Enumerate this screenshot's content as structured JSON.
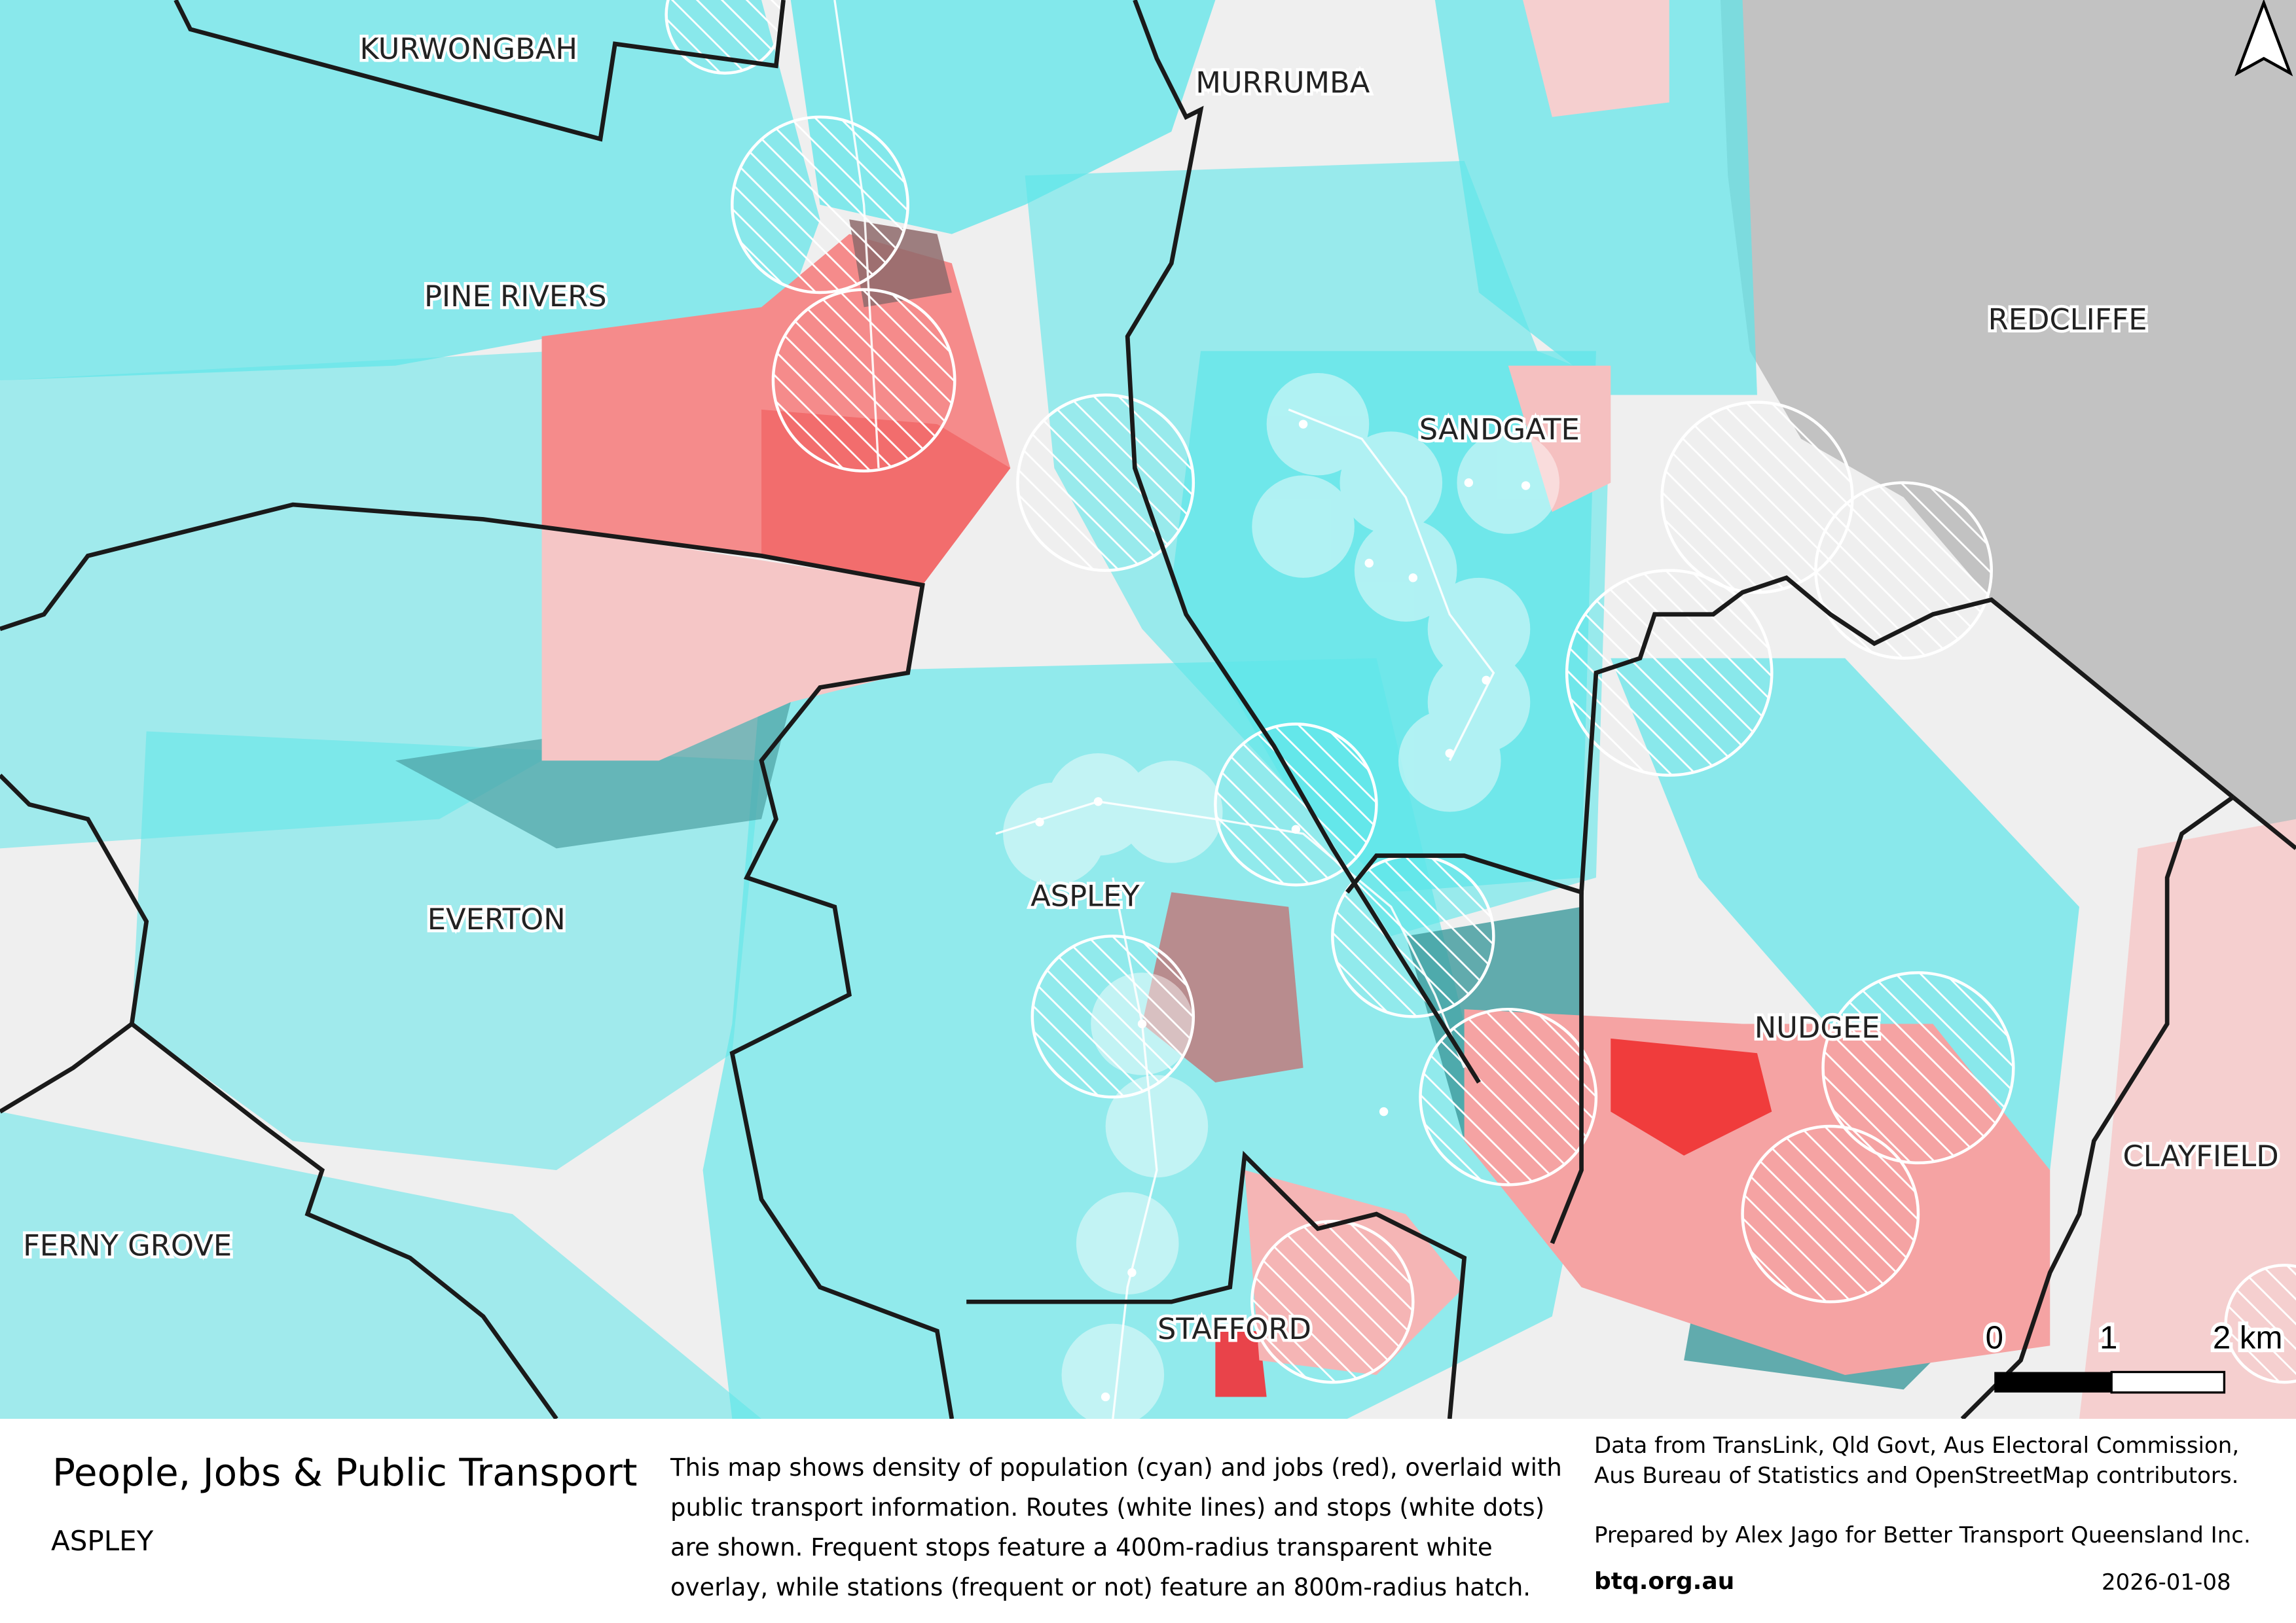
{
  "map": {
    "place_labels": [
      "KURWONGBAH",
      "MURRUMBA",
      "PINE RIVERS",
      "REDCLIFFE",
      "SANDGATE",
      "ASPLEY",
      "EVERTON",
      "NUDGEE",
      "CLAYFIELD",
      "FERNY GROVE",
      "STAFFORD"
    ],
    "scale_bar": {
      "labels": [
        "0",
        "1",
        "2 km"
      ]
    },
    "north_arrow_icon": "north-arrow-icon",
    "colors": {
      "population": "#5ee6ea",
      "jobs": "#f26d6d",
      "boundary": "#1a1a1a",
      "sea": "#c2c2c2",
      "land": "#efefef"
    }
  },
  "footer": {
    "title": "People, Jobs & Public Transport",
    "subtitle": "ASPLEY",
    "description": [
      "This map shows density of population (cyan) and jobs (red), overlaid with",
      "public transport information. Routes (white lines) and stops (white dots)",
      "are shown. Frequent stops feature a 400m-radius transparent white",
      "overlay, while stations (frequent or not) feature an 800m-radius hatch."
    ],
    "credits": [
      "Data from TransLink,  Qld Govt,  Aus Electoral Commission,",
      "Aus Bureau of Statistics and OpenStreetMap contributors."
    ],
    "prepared_by": "Prepared by Alex Jago for Better Transport Queensland Inc.",
    "website": "btq.org.au",
    "date": "2026-01-08"
  }
}
